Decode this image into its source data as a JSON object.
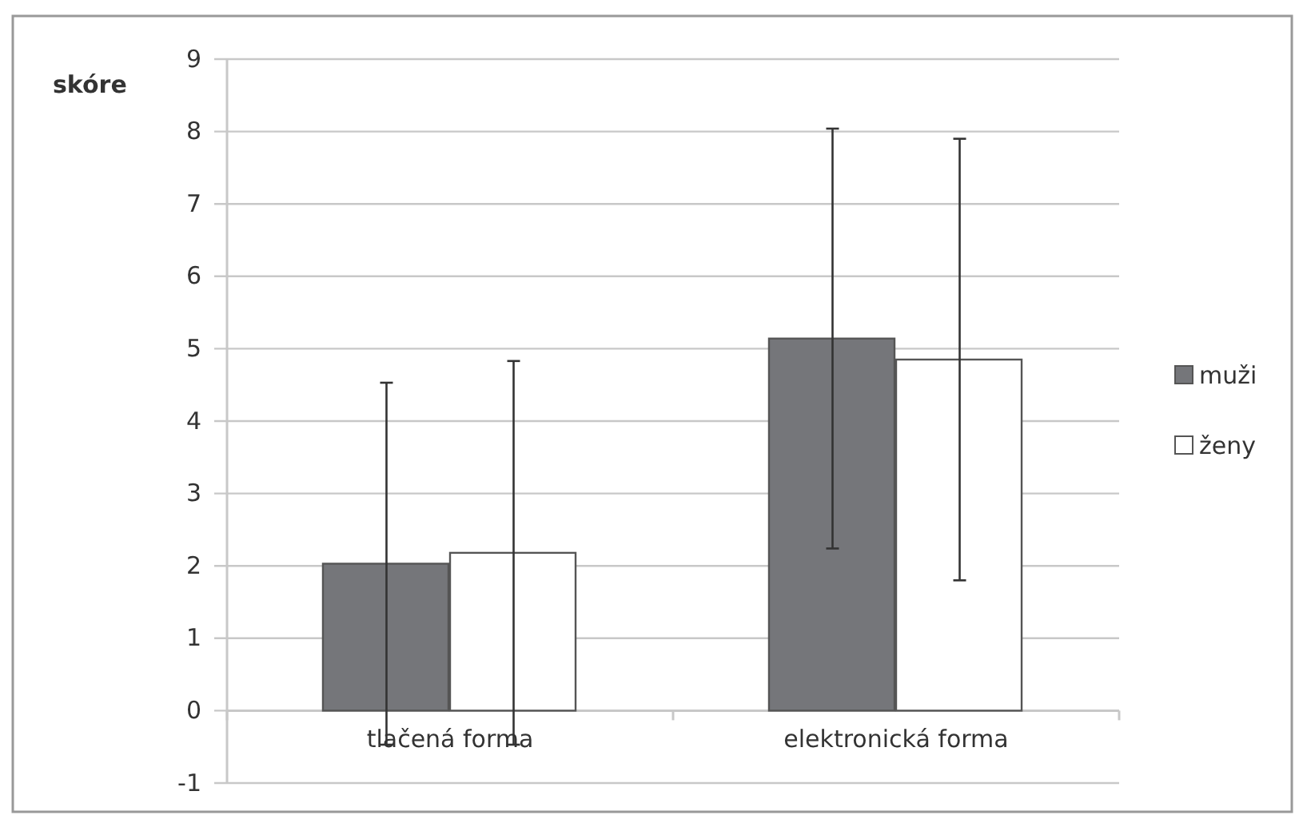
{
  "chart_data": {
    "type": "bar",
    "ylabel": "skóre",
    "categories": [
      "tlačená forma",
      "elektronická forma"
    ],
    "series": [
      {
        "name": "muži",
        "color": "#75767a",
        "values": [
          2.03,
          5.14
        ],
        "errors": [
          2.5,
          2.9
        ]
      },
      {
        "name": "ženy",
        "color": "#ffffff",
        "values": [
          2.18,
          4.85
        ],
        "errors": [
          2.65,
          3.05
        ]
      }
    ],
    "ylim": [
      -1,
      9
    ],
    "yticks": [
      -1,
      0,
      1,
      2,
      3,
      4,
      5,
      6,
      7,
      8,
      9
    ],
    "grid": "y",
    "legend": "right"
  }
}
